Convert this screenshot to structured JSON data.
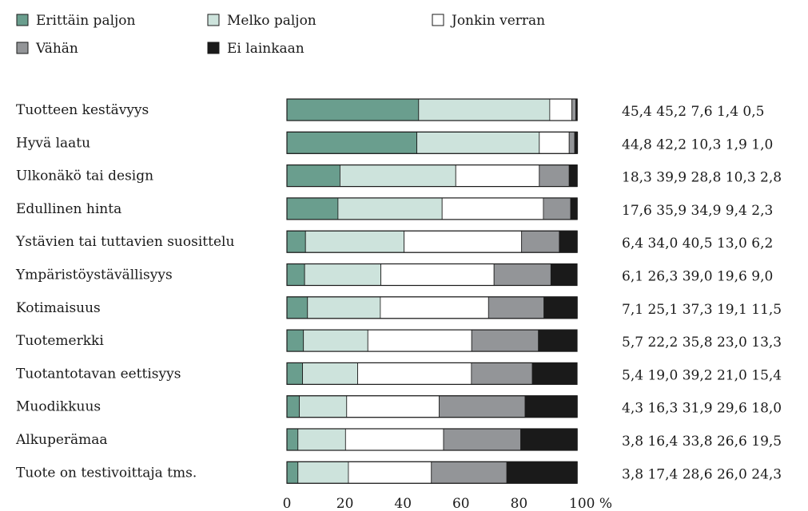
{
  "chart_data": {
    "type": "bar",
    "stacked": true,
    "orientation": "horizontal",
    "categories": [
      "Tuotteen kestävyys",
      "Hyvä laatu",
      "Ulkonäkö tai design",
      "Edullinen hinta",
      "Ystävien tai tuttavien suosittelu",
      "Ympäristöystävällisyys",
      "Kotimaisuus",
      "Tuotemerkki",
      "Tuotantotavan eettisyys",
      "Muodikkuus",
      "Alkuperämaa",
      "Tuote on testivoittaja tms."
    ],
    "series": [
      {
        "name": "Erittäin paljon",
        "color": "#6a9e8e",
        "values": [
          45.4,
          44.8,
          18.3,
          17.6,
          6.4,
          6.1,
          7.1,
          5.7,
          5.4,
          4.3,
          3.8,
          3.8
        ]
      },
      {
        "name": "Melko paljon",
        "color": "#cde3dc",
        "values": [
          45.2,
          42.2,
          39.9,
          35.9,
          34.0,
          26.3,
          25.1,
          22.2,
          19.0,
          16.3,
          16.4,
          17.4
        ]
      },
      {
        "name": "Jonkin verran",
        "color": "#ffffff",
        "values": [
          7.6,
          10.3,
          28.8,
          34.9,
          40.5,
          39.0,
          37.3,
          35.8,
          39.2,
          31.9,
          33.8,
          28.6
        ]
      },
      {
        "name": "Vähän",
        "color": "#939598",
        "values": [
          1.4,
          1.9,
          10.3,
          9.4,
          13.0,
          19.6,
          19.1,
          23.0,
          21.0,
          29.6,
          26.6,
          26.0
        ]
      },
      {
        "name": "Ei lainkaan",
        "color": "#1a1a1a",
        "values": [
          0.5,
          1.0,
          2.8,
          2.3,
          6.2,
          9.0,
          11.5,
          13.3,
          15.4,
          18.0,
          19.5,
          24.3
        ]
      }
    ],
    "value_labels": [
      [
        "45,4",
        "45,2",
        "7,6",
        "1,4",
        "0,5"
      ],
      [
        "44,8",
        "42,2",
        "10,3",
        "1,9",
        "1,0"
      ],
      [
        "18,3",
        "39,9",
        "28,8",
        "10,3",
        "2,8"
      ],
      [
        "17,6",
        "35,9",
        "34,9",
        "9,4",
        "2,3"
      ],
      [
        "6,4",
        "34,0",
        "40,5",
        "13,0",
        "6,2"
      ],
      [
        "6,1",
        "26,3",
        "39,0",
        "19,6",
        "9,0"
      ],
      [
        "7,1",
        "25,1",
        "37,3",
        "19,1",
        "11,5"
      ],
      [
        "5,7",
        "22,2",
        "35,8",
        "23,0",
        "13,3"
      ],
      [
        "5,4",
        "19,0",
        "39,2",
        "21,0",
        "15,4"
      ],
      [
        "4,3",
        "16,3",
        "31,9",
        "29,6",
        "18,0"
      ],
      [
        "3,8",
        "16,4",
        "33,8",
        "26,6",
        "19,5"
      ],
      [
        "3,8",
        "17,4",
        "28,6",
        "26,0",
        "24,3"
      ]
    ],
    "x_ticks": [
      "0",
      "20",
      "40",
      "60",
      "80",
      "100 %"
    ],
    "xlim": [
      0,
      100
    ],
    "legend_position": "top-left",
    "grid": false
  }
}
